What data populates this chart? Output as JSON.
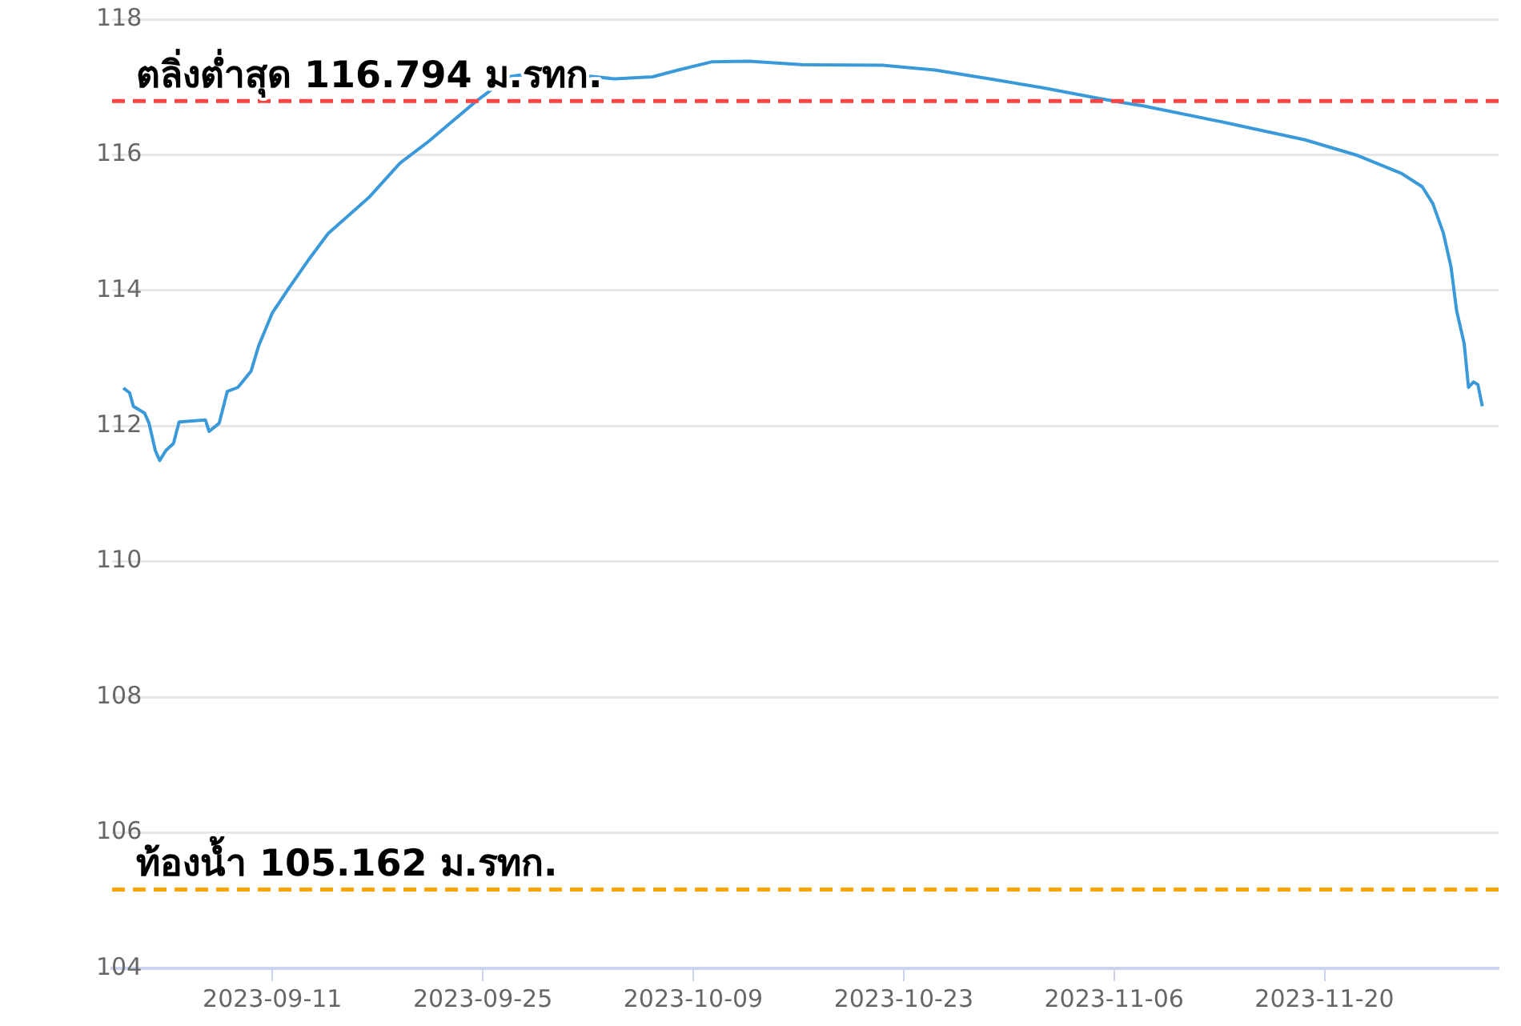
{
  "chart_data": {
    "type": "line",
    "x": [
      "2023-09-01T02:00",
      "2023-09-01T12:00",
      "2023-09-01T18:00",
      "2023-09-02T12:00",
      "2023-09-02T19:00",
      "2023-09-03T05:00",
      "2023-09-03T12:00",
      "2023-09-03T22:00",
      "2023-09-04T10:00",
      "2023-09-04T19:00",
      "2023-09-06T13:00",
      "2023-09-06T19:00",
      "2023-09-07T11:00",
      "2023-09-08T00:00",
      "2023-09-08T17:00",
      "2023-09-09T14:00",
      "2023-09-10T02:00",
      "2023-09-11T00:00",
      "2023-09-12T02:00",
      "2023-09-13T12:00",
      "2023-09-14T17:00",
      "2023-09-17T10:00",
      "2023-09-19T12:00",
      "2023-09-21T07:00",
      "2023-09-24T12:00",
      "2023-09-26T17:00",
      "2023-09-29T02:00",
      "2023-10-01T14:00",
      "2023-10-03T19:00",
      "2023-10-06T07:00",
      "2023-10-08T00:00",
      "2023-10-10T05:00",
      "2023-10-12T17:00",
      "2023-10-16T05:00",
      "2023-10-21T14:00",
      "2023-10-25T02:00",
      "2023-10-28T17:00",
      "2023-11-01T05:00",
      "2023-11-04T19:00",
      "2023-11-06T14:00",
      "2023-11-08T00:00",
      "2023-11-13T07:00",
      "2023-11-18T17:00",
      "2023-11-22T05:00",
      "2023-11-25T02:00",
      "2023-11-26T12:00",
      "2023-11-27T05:00",
      "2023-11-27T22:00",
      "2023-11-28T10:00",
      "2023-11-28T19:00",
      "2023-11-29T07:00",
      "2023-11-29T14:00",
      "2023-11-29T22:00",
      "2023-11-30T05:00",
      "2023-11-30T12:00"
    ],
    "series": [
      {
        "color": "#3a9ad9",
        "values": [
          112.56,
          112.49,
          112.29,
          112.19,
          112.04,
          111.64,
          111.49,
          111.64,
          111.74,
          112.06,
          112.09,
          111.92,
          112.04,
          112.51,
          112.57,
          112.81,
          113.18,
          113.67,
          114.03,
          114.48,
          114.84,
          115.37,
          115.88,
          116.18,
          116.78,
          117.15,
          117.23,
          117.17,
          117.12,
          117.15,
          117.25,
          117.37,
          117.38,
          117.33,
          117.32,
          117.25,
          117.12,
          116.99,
          116.84,
          116.77,
          116.72,
          116.48,
          116.22,
          115.99,
          115.73,
          115.53,
          115.28,
          114.84,
          114.35,
          113.7,
          113.22,
          112.57,
          112.65,
          112.61,
          112.29
        ]
      }
    ],
    "xlim": [
      "2023-08-31T08:00",
      "2023-12-01T14:00"
    ],
    "xticks": [
      "2023-09-11",
      "2023-09-25",
      "2023-10-09",
      "2023-10-23",
      "2023-11-06",
      "2023-11-20"
    ],
    "ylim": [
      104,
      118
    ],
    "yticks": [
      104,
      106,
      108,
      110,
      112,
      114,
      116,
      118
    ],
    "grid": "y",
    "legend": false,
    "marker": "none",
    "line_style": "solid",
    "ref_lines": [
      {
        "axis": "y",
        "value": 116.794,
        "label": "ตลิ่งต่ำสุด 116.794 ม.รทก.",
        "color": "#ff4444",
        "line_style": "dashed"
      },
      {
        "axis": "y",
        "value": 105.162,
        "label": "ท้องน้ำ 105.162 ม.รทก.",
        "color": "#ffa500",
        "line_style": "dashed"
      }
    ]
  }
}
